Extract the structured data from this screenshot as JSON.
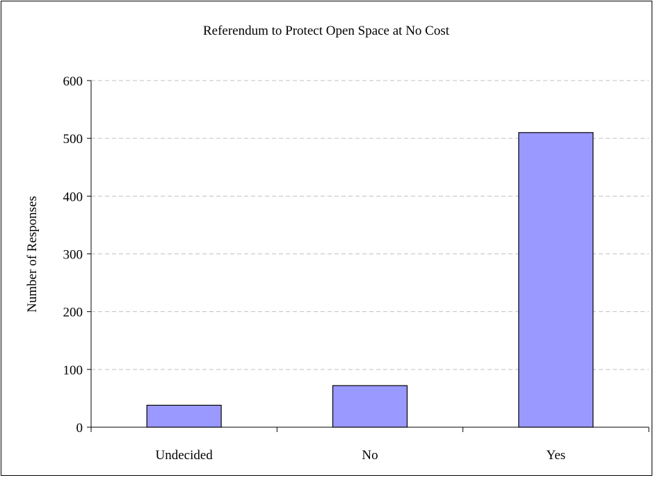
{
  "chart_data": {
    "type": "bar",
    "title": "Referendum to Protect Open Space at No Cost",
    "xlabel": "",
    "ylabel": "Number of Responses",
    "categories": [
      "Undecided",
      "No",
      "Yes"
    ],
    "values": [
      38,
      72,
      510
    ],
    "ylim": [
      0,
      600
    ],
    "yticks": [
      0,
      100,
      200,
      300,
      400,
      500,
      600
    ],
    "grid": true,
    "legend": "none",
    "bar_color": "#9999FF",
    "bar_border": "#000000"
  }
}
